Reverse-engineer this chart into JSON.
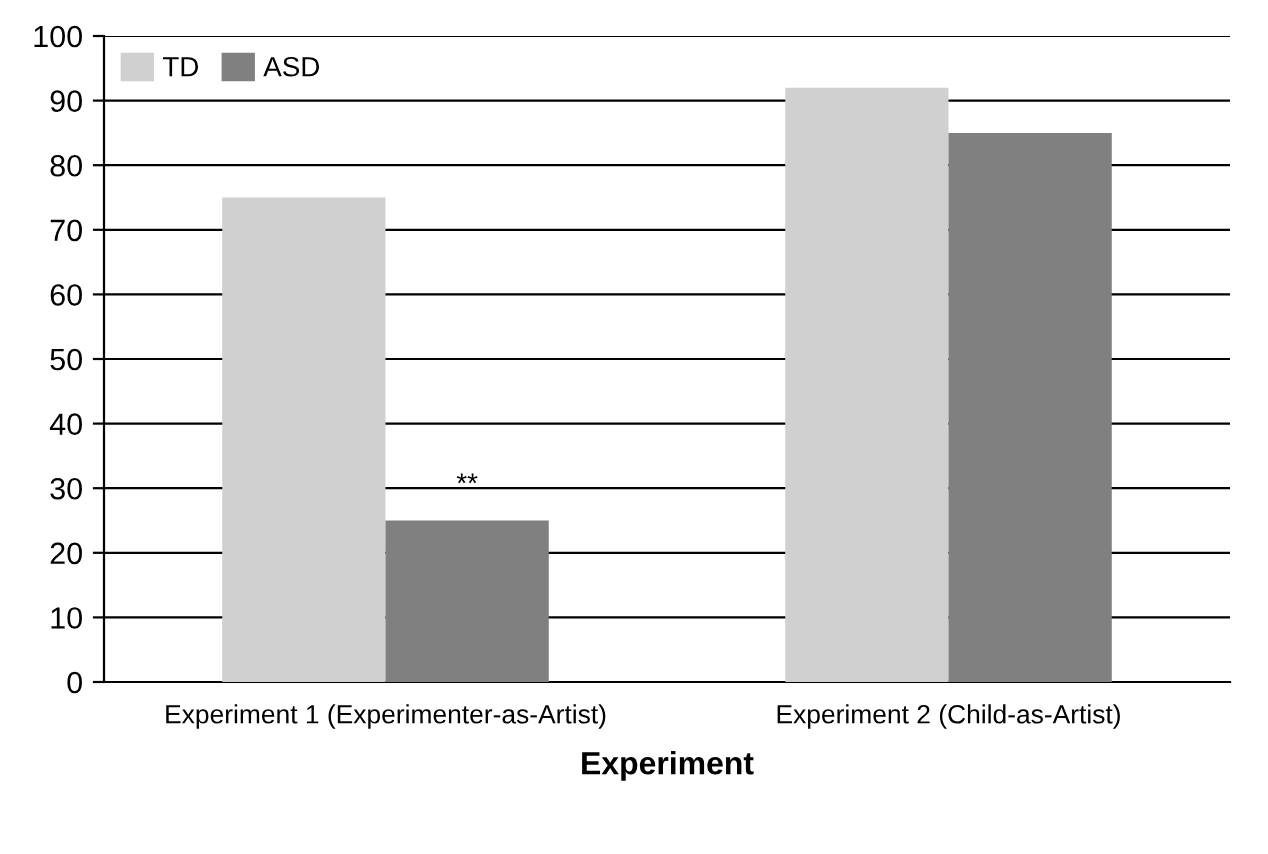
{
  "chart_data": {
    "type": "bar",
    "xlabel": "Experiment",
    "categories": [
      "Experiment 1 (Experimenter-as-Artist)",
      "Experiment 2 (Child-as-Artist)"
    ],
    "series": [
      {
        "name": "TD",
        "color": "#d0d0d0",
        "values": [
          75,
          92
        ]
      },
      {
        "name": "ASD",
        "color": "#808080",
        "values": [
          25,
          85
        ]
      }
    ],
    "ylim": [
      0,
      100
    ],
    "yticks": [
      0,
      10,
      20,
      30,
      40,
      50,
      60,
      70,
      80,
      90,
      100
    ],
    "grid": "y",
    "legend": "top left",
    "annotations": [
      {
        "text": "**",
        "x": "Experiment 1 (Experimenter-as-Artist)",
        "y": 25
      }
    ]
  }
}
